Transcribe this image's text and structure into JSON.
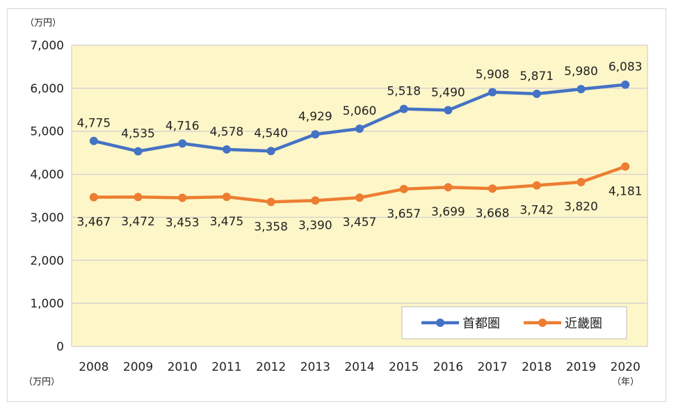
{
  "chart_data": {
    "type": "line",
    "y_unit_top": "（万円）",
    "y_unit_bottom": "（万円）",
    "x_unit": "（年）",
    "categories": [
      "2008",
      "2009",
      "2010",
      "2011",
      "2012",
      "2013",
      "2014",
      "2015",
      "2016",
      "2017",
      "2018",
      "2019",
      "2020"
    ],
    "ylim": [
      0,
      7000
    ],
    "yticks": [
      0,
      1000,
      2000,
      3000,
      4000,
      5000,
      6000,
      7000
    ],
    "ytick_labels": [
      "0",
      "1,000",
      "2,000",
      "3,000",
      "4,000",
      "5,000",
      "6,000",
      "7,000"
    ],
    "grid": "horizontal",
    "legend_position": "bottom-right",
    "plot_background": "#fdf6c8",
    "series": [
      {
        "name": "首都圏",
        "color": "#4472c4",
        "values": [
          4775,
          4535,
          4716,
          4578,
          4540,
          4929,
          5060,
          5518,
          5490,
          5908,
          5871,
          5980,
          6083
        ],
        "labels": [
          "4,775",
          "4,535",
          "4,716",
          "4,578",
          "4,540",
          "4,929",
          "5,060",
          "5,518",
          "5,490",
          "5,908",
          "5,871",
          "5,980",
          "6,083"
        ]
      },
      {
        "name": "近畿圏",
        "color": "#ed7d31",
        "values": [
          3467,
          3472,
          3453,
          3475,
          3358,
          3390,
          3457,
          3657,
          3699,
          3668,
          3742,
          3820,
          4181
        ],
        "labels": [
          "3,467",
          "3,472",
          "3,453",
          "3,475",
          "3,358",
          "3,390",
          "3,457",
          "3,657",
          "3,699",
          "3,668",
          "3,742",
          "3,820",
          "4,181"
        ]
      }
    ]
  }
}
